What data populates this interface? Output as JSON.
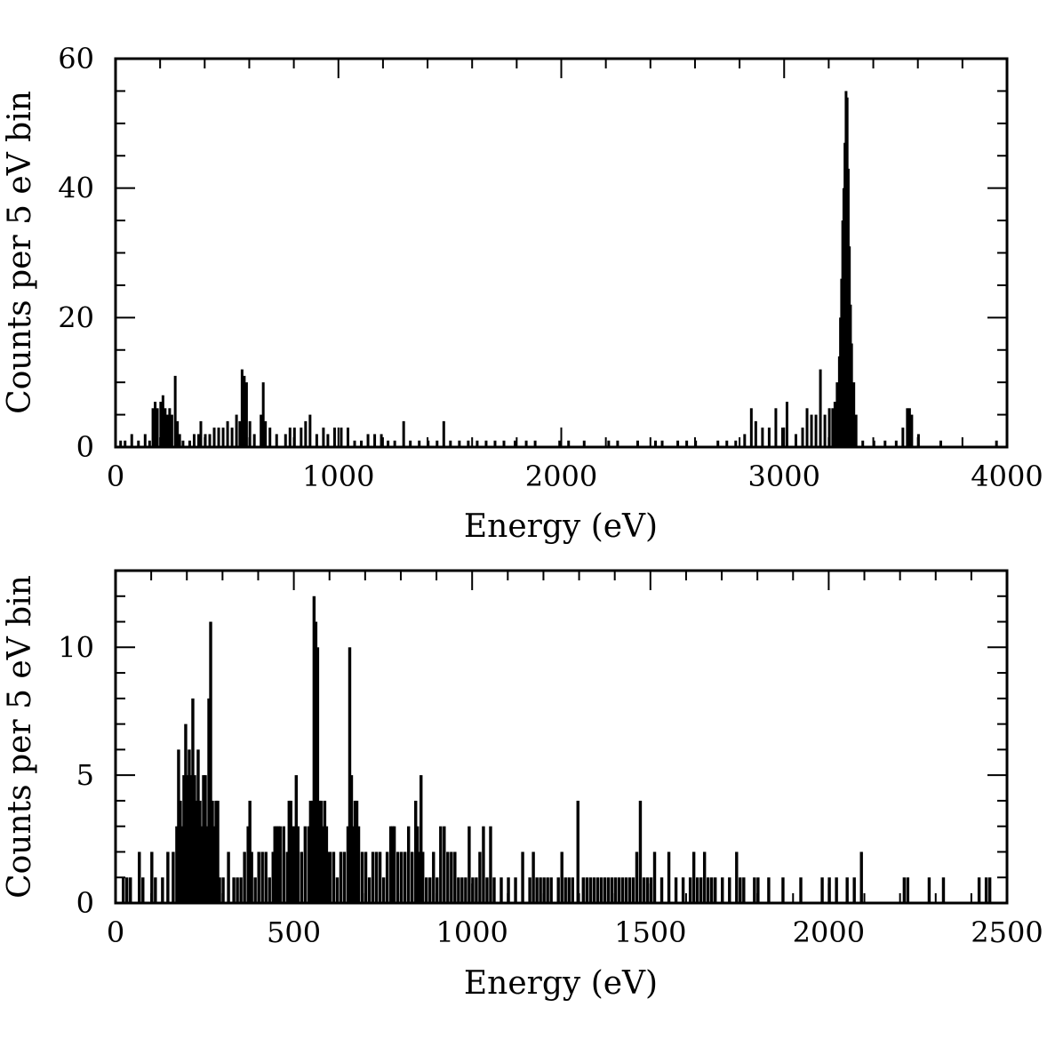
{
  "chart_data": [
    {
      "type": "bar",
      "xlabel": "Energy (eV)",
      "ylabel": "Counts per 5 eV bin",
      "xlim": [
        0,
        4000
      ],
      "ylim": [
        0,
        60
      ],
      "xticks": [
        0,
        1000,
        2000,
        3000,
        4000
      ],
      "xtick_labels": [
        "0",
        "1000",
        "2000",
        "3000",
        "4000"
      ],
      "yticks": [
        0,
        20,
        40,
        60
      ],
      "ytick_labels": [
        "0",
        "20",
        "40",
        "60"
      ],
      "xminor": 200,
      "yminor": 5,
      "bin_width": 5,
      "bins": [
        [
          20,
          1
        ],
        [
          40,
          1
        ],
        [
          70,
          2
        ],
        [
          100,
          1
        ],
        [
          130,
          2
        ],
        [
          150,
          1
        ],
        [
          165,
          6
        ],
        [
          175,
          7
        ],
        [
          185,
          6
        ],
        [
          200,
          7
        ],
        [
          210,
          8
        ],
        [
          220,
          6
        ],
        [
          230,
          5
        ],
        [
          240,
          6
        ],
        [
          250,
          5
        ],
        [
          265,
          11
        ],
        [
          275,
          4
        ],
        [
          285,
          2
        ],
        [
          300,
          1
        ],
        [
          330,
          1
        ],
        [
          350,
          2
        ],
        [
          370,
          2
        ],
        [
          380,
          4
        ],
        [
          400,
          2
        ],
        [
          420,
          2
        ],
        [
          440,
          3
        ],
        [
          460,
          3
        ],
        [
          480,
          3
        ],
        [
          500,
          4
        ],
        [
          520,
          3
        ],
        [
          540,
          5
        ],
        [
          555,
          4
        ],
        [
          565,
          12
        ],
        [
          575,
          11
        ],
        [
          585,
          10
        ],
        [
          600,
          4
        ],
        [
          620,
          2
        ],
        [
          650,
          5
        ],
        [
          660,
          10
        ],
        [
          670,
          4
        ],
        [
          690,
          3
        ],
        [
          720,
          2
        ],
        [
          760,
          2
        ],
        [
          780,
          3
        ],
        [
          800,
          3
        ],
        [
          830,
          3
        ],
        [
          850,
          4
        ],
        [
          870,
          5
        ],
        [
          900,
          2
        ],
        [
          930,
          3
        ],
        [
          950,
          2
        ],
        [
          980,
          3
        ],
        [
          1010,
          3
        ],
        [
          1040,
          3
        ],
        [
          1070,
          1
        ],
        [
          1100,
          1
        ],
        [
          1130,
          2
        ],
        [
          1160,
          2
        ],
        [
          1190,
          2
        ],
        [
          1220,
          1
        ],
        [
          1250,
          1
        ],
        [
          1290,
          4
        ],
        [
          1320,
          1
        ],
        [
          1360,
          1
        ],
        [
          1400,
          1
        ],
        [
          1440,
          1
        ],
        [
          1470,
          4
        ],
        [
          1500,
          1
        ],
        [
          1540,
          1
        ],
        [
          1580,
          1
        ],
        [
          1620,
          1
        ],
        [
          1660,
          1
        ],
        [
          1700,
          1
        ],
        [
          1740,
          1
        ],
        [
          1790,
          1
        ],
        [
          1840,
          1
        ],
        [
          1880,
          1
        ],
        [
          1990,
          1
        ],
        [
          2030,
          1
        ],
        [
          2100,
          1
        ],
        [
          2210,
          1
        ],
        [
          2250,
          1
        ],
        [
          2340,
          1
        ],
        [
          2420,
          1
        ],
        [
          2450,
          1
        ],
        [
          2520,
          1
        ],
        [
          2560,
          1
        ],
        [
          2600,
          1
        ],
        [
          2700,
          1
        ],
        [
          2740,
          1
        ],
        [
          2780,
          1
        ],
        [
          2820,
          2
        ],
        [
          2850,
          6
        ],
        [
          2870,
          4
        ],
        [
          2900,
          3
        ],
        [
          2930,
          3
        ],
        [
          2960,
          6
        ],
        [
          2990,
          3
        ],
        [
          3010,
          7
        ],
        [
          3050,
          2
        ],
        [
          3080,
          3
        ],
        [
          3100,
          6
        ],
        [
          3120,
          5
        ],
        [
          3140,
          5
        ],
        [
          3160,
          12
        ],
        [
          3180,
          5
        ],
        [
          3200,
          6
        ],
        [
          3215,
          6
        ],
        [
          3225,
          7
        ],
        [
          3235,
          10
        ],
        [
          3245,
          14
        ],
        [
          3250,
          20
        ],
        [
          3255,
          26
        ],
        [
          3260,
          35
        ],
        [
          3265,
          40
        ],
        [
          3270,
          47
        ],
        [
          3275,
          55
        ],
        [
          3280,
          54
        ],
        [
          3285,
          43
        ],
        [
          3290,
          31
        ],
        [
          3295,
          22
        ],
        [
          3300,
          16
        ],
        [
          3310,
          10
        ],
        [
          3320,
          5
        ],
        [
          3350,
          1
        ],
        [
          3400,
          1
        ],
        [
          3450,
          1
        ],
        [
          3500,
          1
        ],
        [
          3530,
          3
        ],
        [
          3550,
          6
        ],
        [
          3560,
          6
        ],
        [
          3570,
          5
        ],
        [
          3600,
          2
        ],
        [
          3700,
          1
        ],
        [
          3950,
          1
        ]
      ]
    },
    {
      "type": "bar",
      "xlabel": "Energy (eV)",
      "ylabel": "Counts per 5 eV bin",
      "xlim": [
        0,
        2500
      ],
      "ylim": [
        0,
        13
      ],
      "xticks": [
        0,
        500,
        1000,
        1500,
        2000,
        2500
      ],
      "xtick_labels": [
        "0",
        "500",
        "1000",
        "1500",
        "2000",
        "2500"
      ],
      "yticks": [
        0,
        5,
        10
      ],
      "ytick_labels": [
        "0",
        "5",
        "10"
      ],
      "xminor": 100,
      "yminor": 1,
      "bin_width": 5,
      "bins": [
        [
          20,
          1
        ],
        [
          30,
          1
        ],
        [
          40,
          1
        ],
        [
          65,
          2
        ],
        [
          75,
          1
        ],
        [
          100,
          2
        ],
        [
          110,
          1
        ],
        [
          130,
          1
        ],
        [
          145,
          2
        ],
        [
          160,
          2
        ],
        [
          170,
          3
        ],
        [
          175,
          6
        ],
        [
          180,
          4
        ],
        [
          185,
          3
        ],
        [
          190,
          5
        ],
        [
          195,
          7
        ],
        [
          200,
          5
        ],
        [
          205,
          6
        ],
        [
          210,
          5
        ],
        [
          215,
          8
        ],
        [
          220,
          5
        ],
        [
          225,
          4
        ],
        [
          230,
          6
        ],
        [
          235,
          4
        ],
        [
          240,
          3
        ],
        [
          245,
          5
        ],
        [
          250,
          5
        ],
        [
          255,
          3
        ],
        [
          260,
          8
        ],
        [
          265,
          11
        ],
        [
          270,
          4
        ],
        [
          275,
          3
        ],
        [
          280,
          4
        ],
        [
          285,
          4
        ],
        [
          290,
          1
        ],
        [
          300,
          1
        ],
        [
          315,
          2
        ],
        [
          330,
          1
        ],
        [
          340,
          1
        ],
        [
          350,
          1
        ],
        [
          360,
          2
        ],
        [
          370,
          3
        ],
        [
          375,
          4
        ],
        [
          380,
          2
        ],
        [
          390,
          1
        ],
        [
          400,
          2
        ],
        [
          410,
          2
        ],
        [
          420,
          2
        ],
        [
          430,
          1
        ],
        [
          440,
          2
        ],
        [
          445,
          3
        ],
        [
          450,
          3
        ],
        [
          455,
          3
        ],
        [
          460,
          3
        ],
        [
          470,
          3
        ],
        [
          480,
          2
        ],
        [
          485,
          4
        ],
        [
          490,
          4
        ],
        [
          495,
          3
        ],
        [
          500,
          3
        ],
        [
          505,
          5
        ],
        [
          510,
          3
        ],
        [
          520,
          2
        ],
        [
          530,
          3
        ],
        [
          540,
          3
        ],
        [
          545,
          4
        ],
        [
          550,
          4
        ],
        [
          555,
          12
        ],
        [
          560,
          11
        ],
        [
          565,
          10
        ],
        [
          570,
          4
        ],
        [
          575,
          4
        ],
        [
          580,
          3
        ],
        [
          585,
          4
        ],
        [
          590,
          3
        ],
        [
          595,
          2
        ],
        [
          600,
          2
        ],
        [
          610,
          2
        ],
        [
          620,
          1
        ],
        [
          630,
          2
        ],
        [
          640,
          2
        ],
        [
          650,
          3
        ],
        [
          655,
          10
        ],
        [
          660,
          5
        ],
        [
          665,
          3
        ],
        [
          670,
          4
        ],
        [
          675,
          4
        ],
        [
          680,
          3
        ],
        [
          690,
          2
        ],
        [
          700,
          2
        ],
        [
          710,
          1
        ],
        [
          720,
          2
        ],
        [
          730,
          2
        ],
        [
          740,
          2
        ],
        [
          750,
          1
        ],
        [
          760,
          2
        ],
        [
          770,
          3
        ],
        [
          775,
          3
        ],
        [
          780,
          3
        ],
        [
          790,
          2
        ],
        [
          800,
          2
        ],
        [
          810,
          2
        ],
        [
          820,
          3
        ],
        [
          830,
          2
        ],
        [
          840,
          4
        ],
        [
          845,
          3
        ],
        [
          850,
          2
        ],
        [
          855,
          5
        ],
        [
          860,
          2
        ],
        [
          870,
          1
        ],
        [
          880,
          1
        ],
        [
          890,
          2
        ],
        [
          900,
          1
        ],
        [
          910,
          3
        ],
        [
          920,
          3
        ],
        [
          930,
          2
        ],
        [
          940,
          2
        ],
        [
          950,
          2
        ],
        [
          960,
          1
        ],
        [
          970,
          1
        ],
        [
          980,
          1
        ],
        [
          990,
          3
        ],
        [
          1000,
          1
        ],
        [
          1010,
          1
        ],
        [
          1020,
          2
        ],
        [
          1030,
          3
        ],
        [
          1040,
          1
        ],
        [
          1050,
          3
        ],
        [
          1060,
          1
        ],
        [
          1080,
          1
        ],
        [
          1100,
          1
        ],
        [
          1120,
          1
        ],
        [
          1140,
          2
        ],
        [
          1160,
          1
        ],
        [
          1170,
          2
        ],
        [
          1180,
          1
        ],
        [
          1190,
          1
        ],
        [
          1200,
          1
        ],
        [
          1210,
          1
        ],
        [
          1220,
          1
        ],
        [
          1240,
          1
        ],
        [
          1250,
          2
        ],
        [
          1260,
          1
        ],
        [
          1270,
          1
        ],
        [
          1280,
          1
        ],
        [
          1295,
          4
        ],
        [
          1310,
          1
        ],
        [
          1320,
          1
        ],
        [
          1330,
          1
        ],
        [
          1340,
          1
        ],
        [
          1350,
          1
        ],
        [
          1360,
          1
        ],
        [
          1370,
          1
        ],
        [
          1380,
          1
        ],
        [
          1390,
          1
        ],
        [
          1400,
          1
        ],
        [
          1410,
          1
        ],
        [
          1420,
          1
        ],
        [
          1430,
          1
        ],
        [
          1440,
          1
        ],
        [
          1450,
          1
        ],
        [
          1460,
          2
        ],
        [
          1470,
          4
        ],
        [
          1480,
          1
        ],
        [
          1490,
          1
        ],
        [
          1500,
          1
        ],
        [
          1510,
          2
        ],
        [
          1530,
          1
        ],
        [
          1550,
          2
        ],
        [
          1570,
          1
        ],
        [
          1590,
          1
        ],
        [
          1610,
          1
        ],
        [
          1620,
          2
        ],
        [
          1630,
          1
        ],
        [
          1640,
          1
        ],
        [
          1650,
          2
        ],
        [
          1660,
          1
        ],
        [
          1670,
          1
        ],
        [
          1680,
          1
        ],
        [
          1700,
          1
        ],
        [
          1720,
          1
        ],
        [
          1740,
          2
        ],
        [
          1750,
          1
        ],
        [
          1760,
          1
        ],
        [
          1790,
          1
        ],
        [
          1800,
          1
        ],
        [
          1830,
          1
        ],
        [
          1870,
          1
        ],
        [
          1920,
          1
        ],
        [
          1980,
          1
        ],
        [
          2000,
          1
        ],
        [
          2020,
          1
        ],
        [
          2050,
          1
        ],
        [
          2070,
          1
        ],
        [
          2090,
          2
        ],
        [
          2210,
          1
        ],
        [
          2220,
          1
        ],
        [
          2280,
          1
        ],
        [
          2320,
          1
        ],
        [
          2420,
          1
        ],
        [
          2440,
          1
        ],
        [
          2450,
          1
        ]
      ]
    }
  ]
}
